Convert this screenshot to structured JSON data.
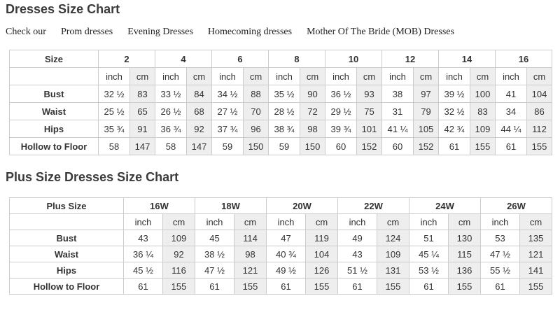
{
  "titles": {
    "main": "Dresses Size Chart",
    "plus": "Plus Size Dresses Size Chart"
  },
  "nav": {
    "prefix": "Check our",
    "links": [
      "Prom dresses",
      "Evening Dresses",
      "Homecoming dresses",
      "Mother Of The Bride (MOB) Dresses"
    ]
  },
  "colors": {
    "cm_column_bg": "#eeeeee",
    "table_border": "#cccccc",
    "text": "#333333"
  },
  "tables": [
    {
      "header_label": "Size",
      "units": [
        "inch",
        "cm"
      ],
      "sizes": [
        "2",
        "4",
        "6",
        "8",
        "10",
        "12",
        "14",
        "16"
      ],
      "rows": [
        {
          "label": "Bust",
          "values": [
            [
              "32 ½",
              "83"
            ],
            [
              "33 ½",
              "84"
            ],
            [
              "34 ½",
              "88"
            ],
            [
              "35 ½",
              "90"
            ],
            [
              "36 ½",
              "93"
            ],
            [
              "38",
              "97"
            ],
            [
              "39 ½",
              "100"
            ],
            [
              "41",
              "104"
            ]
          ]
        },
        {
          "label": "Waist",
          "values": [
            [
              "25 ½",
              "65"
            ],
            [
              "26 ½",
              "68"
            ],
            [
              "27 ½",
              "70"
            ],
            [
              "28 ½",
              "72"
            ],
            [
              "29 ½",
              "75"
            ],
            [
              "31",
              "79"
            ],
            [
              "32 ½",
              "83"
            ],
            [
              "34",
              "86"
            ]
          ]
        },
        {
          "label": "Hips",
          "values": [
            [
              "35 ¾",
              "91"
            ],
            [
              "36 ¾",
              "92"
            ],
            [
              "37 ¾",
              "96"
            ],
            [
              "38 ¾",
              "98"
            ],
            [
              "39 ¾",
              "101"
            ],
            [
              "41 ¼",
              "105"
            ],
            [
              "42 ¾",
              "109"
            ],
            [
              "44 ¼",
              "112"
            ]
          ]
        },
        {
          "label": "Hollow to Floor",
          "values": [
            [
              "58",
              "147"
            ],
            [
              "58",
              "147"
            ],
            [
              "59",
              "150"
            ],
            [
              "59",
              "150"
            ],
            [
              "60",
              "152"
            ],
            [
              "60",
              "152"
            ],
            [
              "61",
              "155"
            ],
            [
              "61",
              "155"
            ]
          ]
        }
      ]
    },
    {
      "header_label": "Plus Size",
      "units": [
        "inch",
        "cm"
      ],
      "sizes": [
        "16W",
        "18W",
        "20W",
        "22W",
        "24W",
        "26W"
      ],
      "rows": [
        {
          "label": "Bust",
          "values": [
            [
              "43",
              "109"
            ],
            [
              "45",
              "114"
            ],
            [
              "47",
              "119"
            ],
            [
              "49",
              "124"
            ],
            [
              "51",
              "130"
            ],
            [
              "53",
              "135"
            ]
          ]
        },
        {
          "label": "Waist",
          "values": [
            [
              "36 ¼",
              "92"
            ],
            [
              "38 ½",
              "98"
            ],
            [
              "40 ¾",
              "104"
            ],
            [
              "43",
              "109"
            ],
            [
              "45 ¼",
              "115"
            ],
            [
              "47 ½",
              "121"
            ]
          ]
        },
        {
          "label": "Hips",
          "values": [
            [
              "45 ½",
              "116"
            ],
            [
              "47 ½",
              "121"
            ],
            [
              "49 ½",
              "126"
            ],
            [
              "51 ½",
              "131"
            ],
            [
              "53 ½",
              "136"
            ],
            [
              "55 ½",
              "141"
            ]
          ]
        },
        {
          "label": "Hollow to Floor",
          "values": [
            [
              "61",
              "155"
            ],
            [
              "61",
              "155"
            ],
            [
              "61",
              "155"
            ],
            [
              "61",
              "155"
            ],
            [
              "61",
              "155"
            ],
            [
              "61",
              "155"
            ]
          ]
        }
      ]
    }
  ]
}
